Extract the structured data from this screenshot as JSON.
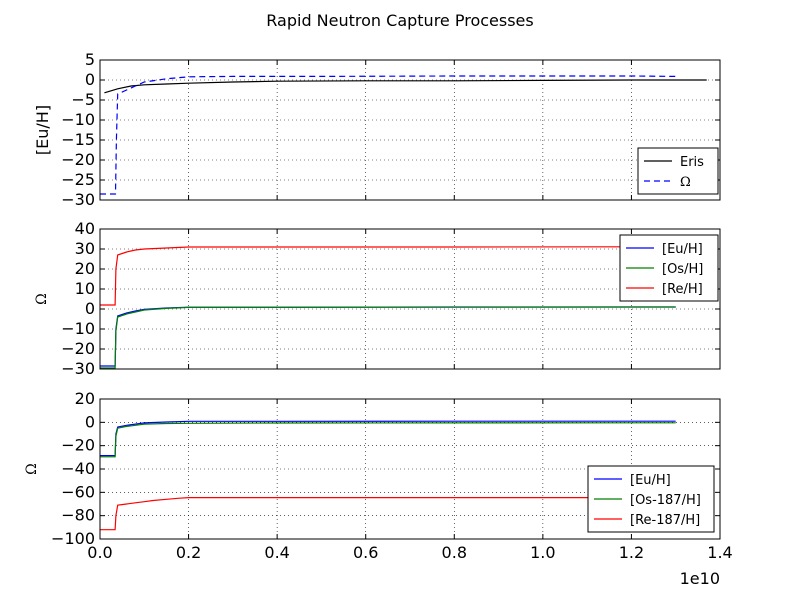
{
  "title": "Rapid Neutron Capture Processes",
  "x_offset_label": "1e10",
  "chart_data": [
    {
      "type": "line",
      "ylabel": "[Eu/H]",
      "ylim": [
        -30,
        5
      ],
      "yticks": [
        5,
        0,
        -5,
        -10,
        -15,
        -20,
        -25,
        -30
      ],
      "ytick_labels": [
        "5",
        "0",
        "−5",
        "−10",
        "−15",
        "−20",
        "−25",
        "−30"
      ],
      "xlim": [
        0,
        1.4
      ],
      "grid": true,
      "legend_position": "lower-right",
      "series": [
        {
          "name": "Eris",
          "color": "#000000",
          "dash": "solid",
          "x": [
            0.01,
            0.04,
            0.07,
            0.1,
            0.15,
            0.2,
            0.3,
            0.4,
            0.6,
            0.8,
            1.0,
            1.2,
            1.37
          ],
          "y": [
            -3.2,
            -2.2,
            -1.5,
            -1.2,
            -1.0,
            -0.8,
            -0.5,
            -0.3,
            -0.2,
            -0.2,
            -0.1,
            0.0,
            0.0
          ]
        },
        {
          "name": "Ω",
          "color": "#0000ff",
          "dash": "dashed",
          "x": [
            0.0,
            0.035,
            0.037,
            0.04,
            0.06,
            0.08,
            0.1,
            0.15,
            0.2,
            0.3,
            0.5,
            0.8,
            1.0,
            1.2,
            1.3
          ],
          "y": [
            -28.5,
            -28.5,
            -15.0,
            -3.5,
            -2.5,
            -1.5,
            -0.5,
            0.3,
            0.8,
            0.9,
            0.9,
            1.0,
            1.0,
            1.0,
            0.9
          ]
        }
      ]
    },
    {
      "type": "line",
      "ylabel": "Ω",
      "ylim": [
        -30,
        40
      ],
      "yticks": [
        40,
        30,
        20,
        10,
        0,
        -10,
        -20,
        -30
      ],
      "ytick_labels": [
        "40",
        "30",
        "20",
        "10",
        "0",
        "−10",
        "−20",
        "−30"
      ],
      "xlim": [
        0,
        1.4
      ],
      "grid": true,
      "legend_position": "upper-right",
      "series": [
        {
          "name": "[Eu/H]",
          "color": "#0000ff",
          "dash": "solid",
          "x": [
            0.0,
            0.034,
            0.036,
            0.04,
            0.06,
            0.08,
            0.1,
            0.15,
            0.2,
            0.4,
            0.8,
            1.2,
            1.3
          ],
          "y": [
            -28.5,
            -28.5,
            -10.0,
            -3.5,
            -2.0,
            -1.0,
            -0.2,
            0.5,
            0.9,
            0.9,
            1.0,
            1.0,
            1.0
          ]
        },
        {
          "name": "[Os/H]",
          "color": "#008000",
          "dash": "solid",
          "x": [
            0.0,
            0.034,
            0.036,
            0.04,
            0.06,
            0.08,
            0.1,
            0.15,
            0.2,
            0.4,
            0.8,
            1.2,
            1.3
          ],
          "y": [
            -29.5,
            -29.5,
            -11.0,
            -4.0,
            -2.5,
            -1.5,
            -0.5,
            0.3,
            0.8,
            0.8,
            0.9,
            1.0,
            1.0
          ]
        },
        {
          "name": "[Re/H]",
          "color": "#ff0000",
          "dash": "solid",
          "x": [
            0.0,
            0.034,
            0.036,
            0.04,
            0.06,
            0.08,
            0.1,
            0.15,
            0.2,
            0.4,
            0.8,
            1.2,
            1.3
          ],
          "y": [
            2.0,
            2.0,
            20.0,
            27.0,
            28.5,
            29.5,
            30.0,
            30.5,
            31.0,
            31.0,
            31.0,
            31.1,
            31.1
          ]
        }
      ]
    },
    {
      "type": "line",
      "ylabel": "Ω",
      "ylim": [
        -100,
        20
      ],
      "yticks": [
        20,
        0,
        -20,
        -40,
        -60,
        -80,
        -100
      ],
      "ytick_labels": [
        "20",
        "0",
        "−20",
        "−40",
        "−60",
        "−80",
        "−100"
      ],
      "xlim": [
        0,
        1.4
      ],
      "xticks": [
        0.0,
        0.2,
        0.4,
        0.6,
        0.8,
        1.0,
        1.2,
        1.4
      ],
      "xtick_labels": [
        "0.0",
        "0.2",
        "0.4",
        "0.6",
        "0.8",
        "1.0",
        "1.2",
        "1.4"
      ],
      "grid": true,
      "legend_position": "lower-right",
      "series": [
        {
          "name": "[Eu/H]",
          "color": "#0000ff",
          "dash": "solid",
          "x": [
            0.0,
            0.034,
            0.036,
            0.04,
            0.06,
            0.08,
            0.1,
            0.15,
            0.2,
            0.4,
            0.8,
            1.2,
            1.3
          ],
          "y": [
            -28.5,
            -28.5,
            -10.0,
            -4.0,
            -2.5,
            -1.5,
            -0.5,
            0.3,
            0.9,
            0.9,
            1.0,
            1.0,
            1.0
          ]
        },
        {
          "name": "[Os-187/H]",
          "color": "#008000",
          "dash": "solid",
          "x": [
            0.0,
            0.034,
            0.036,
            0.04,
            0.06,
            0.08,
            0.1,
            0.15,
            0.2,
            0.4,
            0.8,
            1.2,
            1.3
          ],
          "y": [
            -29.5,
            -29.5,
            -12.0,
            -5.0,
            -3.5,
            -2.5,
            -1.5,
            -1.0,
            -0.8,
            -0.6,
            -0.5,
            -0.4,
            -0.4
          ]
        },
        {
          "name": "[Re-187/H]",
          "color": "#ff0000",
          "dash": "solid",
          "x": [
            0.0,
            0.034,
            0.036,
            0.04,
            0.06,
            0.08,
            0.1,
            0.12,
            0.15,
            0.18,
            0.2,
            0.4,
            0.8,
            1.2,
            1.3
          ],
          "y": [
            -92.0,
            -92.0,
            -80.0,
            -71.0,
            -70.0,
            -69.0,
            -68.0,
            -67.0,
            -66.0,
            -65.0,
            -64.5,
            -64.5,
            -64.5,
            -64.5,
            -64.5
          ]
        }
      ]
    }
  ]
}
